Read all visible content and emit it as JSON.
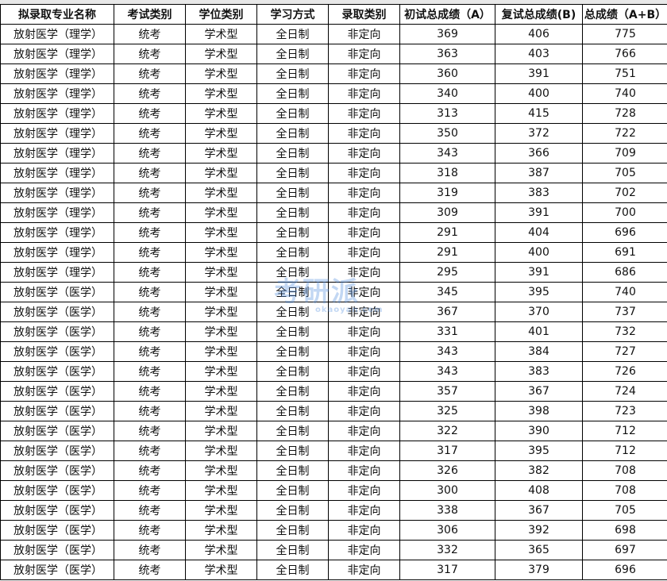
{
  "headers": [
    "拟录取专业名称",
    "考试类别",
    "学位类别",
    "学习方式",
    "录取类别",
    "初试总成绩（A）",
    "复试总成绩(B)",
    "总成绩（A+B）"
  ],
  "rows": [
    [
      "放射医学（理学）",
      "统考",
      "学术型",
      "全日制",
      "非定向",
      "369",
      "406",
      "775"
    ],
    [
      "放射医学（理学）",
      "统考",
      "学术型",
      "全日制",
      "非定向",
      "363",
      "403",
      "766"
    ],
    [
      "放射医学（理学）",
      "统考",
      "学术型",
      "全日制",
      "非定向",
      "360",
      "391",
      "751"
    ],
    [
      "放射医学（理学）",
      "统考",
      "学术型",
      "全日制",
      "非定向",
      "340",
      "400",
      "740"
    ],
    [
      "放射医学（理学）",
      "统考",
      "学术型",
      "全日制",
      "非定向",
      "313",
      "415",
      "728"
    ],
    [
      "放射医学（理学）",
      "统考",
      "学术型",
      "全日制",
      "非定向",
      "350",
      "372",
      "722"
    ],
    [
      "放射医学（理学）",
      "统考",
      "学术型",
      "全日制",
      "非定向",
      "343",
      "366",
      "709"
    ],
    [
      "放射医学（理学）",
      "统考",
      "学术型",
      "全日制",
      "非定向",
      "318",
      "387",
      "705"
    ],
    [
      "放射医学（理学）",
      "统考",
      "学术型",
      "全日制",
      "非定向",
      "319",
      "383",
      "702"
    ],
    [
      "放射医学（理学）",
      "统考",
      "学术型",
      "全日制",
      "非定向",
      "309",
      "391",
      "700"
    ],
    [
      "放射医学（理学）",
      "统考",
      "学术型",
      "全日制",
      "非定向",
      "291",
      "404",
      "696"
    ],
    [
      "放射医学（理学）",
      "统考",
      "学术型",
      "全日制",
      "非定向",
      "291",
      "400",
      "691"
    ],
    [
      "放射医学（理学）",
      "统考",
      "学术型",
      "全日制",
      "非定向",
      "295",
      "391",
      "686"
    ],
    [
      "放射医学（医学）",
      "统考",
      "学术型",
      "全日制",
      "非定向",
      "345",
      "395",
      "740"
    ],
    [
      "放射医学（医学）",
      "统考",
      "学术型",
      "全日制",
      "非定向",
      "367",
      "370",
      "737"
    ],
    [
      "放射医学（医学）",
      "统考",
      "学术型",
      "全日制",
      "非定向",
      "331",
      "401",
      "732"
    ],
    [
      "放射医学（医学）",
      "统考",
      "学术型",
      "全日制",
      "非定向",
      "343",
      "384",
      "727"
    ],
    [
      "放射医学（医学）",
      "统考",
      "学术型",
      "全日制",
      "非定向",
      "343",
      "383",
      "726"
    ],
    [
      "放射医学（医学）",
      "统考",
      "学术型",
      "全日制",
      "非定向",
      "357",
      "367",
      "724"
    ],
    [
      "放射医学（医学）",
      "统考",
      "学术型",
      "全日制",
      "非定向",
      "325",
      "398",
      "723"
    ],
    [
      "放射医学（医学）",
      "统考",
      "学术型",
      "全日制",
      "非定向",
      "322",
      "390",
      "712"
    ],
    [
      "放射医学（医学）",
      "统考",
      "学术型",
      "全日制",
      "非定向",
      "317",
      "395",
      "712"
    ],
    [
      "放射医学（医学）",
      "统考",
      "学术型",
      "全日制",
      "非定向",
      "326",
      "382",
      "708"
    ],
    [
      "放射医学（医学）",
      "统考",
      "学术型",
      "全日制",
      "非定向",
      "300",
      "408",
      "708"
    ],
    [
      "放射医学（医学）",
      "统考",
      "学术型",
      "全日制",
      "非定向",
      "338",
      "367",
      "705"
    ],
    [
      "放射医学（医学）",
      "统考",
      "学术型",
      "全日制",
      "非定向",
      "306",
      "392",
      "698"
    ],
    [
      "放射医学（医学）",
      "统考",
      "学术型",
      "全日制",
      "非定向",
      "332",
      "365",
      "697"
    ],
    [
      "放射医学（医学）",
      "统考",
      "学术型",
      "全日制",
      "非定向",
      "317",
      "379",
      "696"
    ]
  ],
  "watermark": {
    "text": "考研派",
    "sub": "okaoyan.com",
    "color": "#508cdc"
  }
}
